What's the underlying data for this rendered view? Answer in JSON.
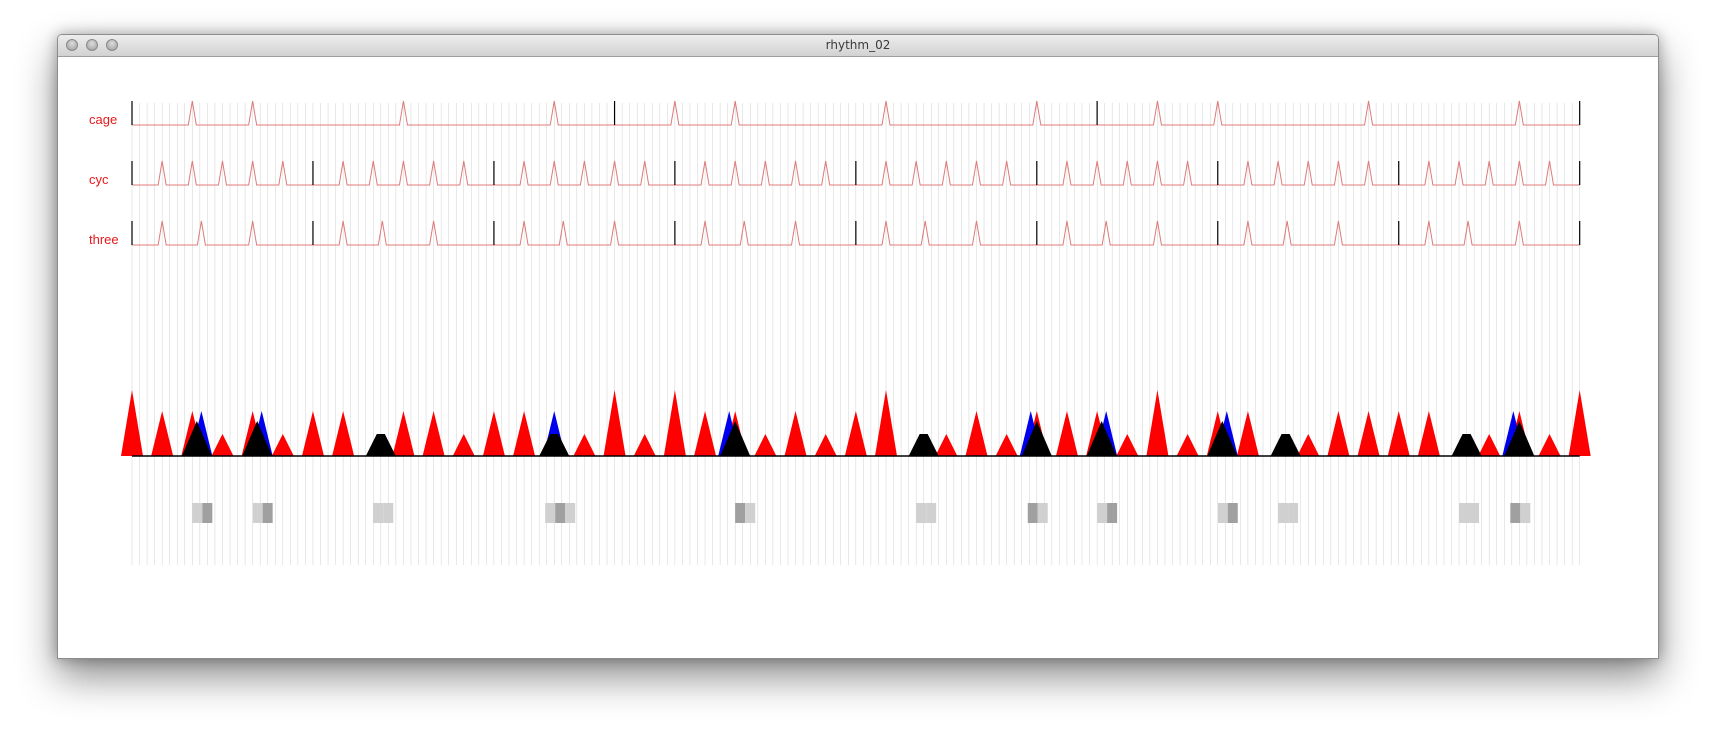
{
  "window": {
    "title": "rhythm_02"
  },
  "colors": {
    "label": "#e8181b",
    "trace": "#e07a7a",
    "beat": "#000000",
    "red": "#ff0000",
    "blue": "#0000ee",
    "black": "#000000",
    "grid": "#d0d0d0"
  },
  "tracks": [
    {
      "label": "cage",
      "peaks": [
        4,
        8,
        18,
        28,
        36,
        40,
        50,
        60,
        68,
        72,
        82,
        92
      ],
      "bars": [
        0,
        32,
        64,
        96
      ]
    },
    {
      "label": "cyc",
      "peaks": [
        2,
        4,
        6,
        8,
        10,
        14,
        16,
        18,
        20,
        22,
        26,
        28,
        30,
        32,
        34,
        38,
        40,
        42,
        44,
        46,
        50,
        52,
        54,
        56,
        58,
        62,
        64,
        66,
        68,
        70,
        74,
        76,
        78,
        80,
        82,
        86,
        88,
        90,
        92,
        94
      ],
      "bars": [
        0,
        12,
        24,
        36,
        48,
        60,
        72,
        84,
        96
      ]
    },
    {
      "label": "three",
      "peaks": [
        2,
        4.6,
        8,
        14,
        16.6,
        20,
        26,
        28.6,
        32,
        38,
        40.6,
        44,
        50,
        52.6,
        56,
        62,
        64.6,
        68,
        74,
        76.6,
        80,
        86,
        88.6,
        92
      ],
      "bars": [
        0,
        12,
        24,
        36,
        48,
        60,
        72,
        84,
        96
      ]
    }
  ],
  "sum_triangles": [
    {
      "x": 0,
      "h": 66,
      "c": "red"
    },
    {
      "x": 2,
      "h": 45,
      "c": "red"
    },
    {
      "x": 4,
      "h": 45,
      "c": "red"
    },
    {
      "x": 4.6,
      "h": 45,
      "c": "blue"
    },
    {
      "x": 4.3,
      "h": 35,
      "c": "black"
    },
    {
      "x": 6,
      "h": 22,
      "c": "red"
    },
    {
      "x": 8,
      "h": 45,
      "c": "red"
    },
    {
      "x": 8.6,
      "h": 45,
      "c": "blue"
    },
    {
      "x": 8.3,
      "h": 35,
      "c": "black"
    },
    {
      "x": 10,
      "h": 22,
      "c": "red"
    },
    {
      "x": 12,
      "h": 45,
      "c": "red"
    },
    {
      "x": 14,
      "h": 45,
      "c": "red"
    },
    {
      "x": 16.5,
      "h": 22,
      "c": "black"
    },
    {
      "x": 18,
      "h": 45,
      "c": "red"
    },
    {
      "x": 20,
      "h": 45,
      "c": "red"
    },
    {
      "x": 22,
      "h": 22,
      "c": "red"
    },
    {
      "x": 24,
      "h": 45,
      "c": "red"
    },
    {
      "x": 26,
      "h": 45,
      "c": "red"
    },
    {
      "x": 28,
      "h": 45,
      "c": "blue"
    },
    {
      "x": 28,
      "h": 22,
      "c": "black"
    },
    {
      "x": 30,
      "h": 22,
      "c": "red"
    },
    {
      "x": 32,
      "h": 66,
      "c": "red"
    },
    {
      "x": 34,
      "h": 22,
      "c": "red"
    },
    {
      "x": 36,
      "h": 66,
      "c": "red"
    },
    {
      "x": 38,
      "h": 45,
      "c": "red"
    },
    {
      "x": 40,
      "h": 45,
      "c": "red"
    },
    {
      "x": 39.6,
      "h": 45,
      "c": "blue"
    },
    {
      "x": 40,
      "h": 35,
      "c": "black"
    },
    {
      "x": 42,
      "h": 22,
      "c": "red"
    },
    {
      "x": 44,
      "h": 45,
      "c": "red"
    },
    {
      "x": 46,
      "h": 22,
      "c": "red"
    },
    {
      "x": 48,
      "h": 45,
      "c": "red"
    },
    {
      "x": 50,
      "h": 66,
      "c": "red"
    },
    {
      "x": 52.5,
      "h": 22,
      "c": "black"
    },
    {
      "x": 54,
      "h": 22,
      "c": "red"
    },
    {
      "x": 56,
      "h": 45,
      "c": "red"
    },
    {
      "x": 58,
      "h": 22,
      "c": "red"
    },
    {
      "x": 60,
      "h": 45,
      "c": "red"
    },
    {
      "x": 59.6,
      "h": 45,
      "c": "blue"
    },
    {
      "x": 60,
      "h": 35,
      "c": "black"
    },
    {
      "x": 62,
      "h": 45,
      "c": "red"
    },
    {
      "x": 64,
      "h": 45,
      "c": "red"
    },
    {
      "x": 64.6,
      "h": 45,
      "c": "blue"
    },
    {
      "x": 64.3,
      "h": 35,
      "c": "black"
    },
    {
      "x": 66,
      "h": 22,
      "c": "red"
    },
    {
      "x": 68,
      "h": 66,
      "c": "red"
    },
    {
      "x": 70,
      "h": 22,
      "c": "red"
    },
    {
      "x": 72,
      "h": 45,
      "c": "red"
    },
    {
      "x": 72.6,
      "h": 45,
      "c": "blue"
    },
    {
      "x": 72.3,
      "h": 35,
      "c": "black"
    },
    {
      "x": 74,
      "h": 45,
      "c": "red"
    },
    {
      "x": 76.5,
      "h": 22,
      "c": "black"
    },
    {
      "x": 78,
      "h": 22,
      "c": "red"
    },
    {
      "x": 80,
      "h": 45,
      "c": "red"
    },
    {
      "x": 82,
      "h": 45,
      "c": "red"
    },
    {
      "x": 84,
      "h": 45,
      "c": "red"
    },
    {
      "x": 86,
      "h": 45,
      "c": "red"
    },
    {
      "x": 88.5,
      "h": 22,
      "c": "black"
    },
    {
      "x": 90,
      "h": 22,
      "c": "red"
    },
    {
      "x": 92,
      "h": 45,
      "c": "red"
    },
    {
      "x": 91.6,
      "h": 45,
      "c": "blue"
    },
    {
      "x": 92,
      "h": 35,
      "c": "black"
    },
    {
      "x": 94,
      "h": 22,
      "c": "red"
    },
    {
      "x": 96,
      "h": 66,
      "c": "red"
    }
  ],
  "gray_cells": [
    {
      "x": 4,
      "shades": [
        "#d0d0d0",
        "#a0a0a0"
      ]
    },
    {
      "x": 8,
      "shades": [
        "#d0d0d0",
        "#a0a0a0"
      ]
    },
    {
      "x": 16,
      "shades": [
        "#d0d0d0",
        "#d0d0d0"
      ]
    },
    {
      "x": 27.4,
      "shades": [
        "#d0d0d0",
        "#a0a0a0",
        "#d0d0d0"
      ]
    },
    {
      "x": 40,
      "shades": [
        "#a0a0a0",
        "#d0d0d0"
      ]
    },
    {
      "x": 52,
      "shades": [
        "#d0d0d0",
        "#d0d0d0"
      ]
    },
    {
      "x": 59.4,
      "shades": [
        "#a0a0a0",
        "#d0d0d0"
      ]
    },
    {
      "x": 64,
      "shades": [
        "#d0d0d0",
        "#a0a0a0"
      ]
    },
    {
      "x": 72,
      "shades": [
        "#d0d0d0",
        "#a0a0a0"
      ]
    },
    {
      "x": 76,
      "shades": [
        "#d0d0d0",
        "#d0d0d0"
      ]
    },
    {
      "x": 88,
      "shades": [
        "#d0d0d0",
        "#d0d0d0"
      ]
    },
    {
      "x": 91.4,
      "shades": [
        "#a0a0a0",
        "#d0d0d0"
      ]
    }
  ]
}
